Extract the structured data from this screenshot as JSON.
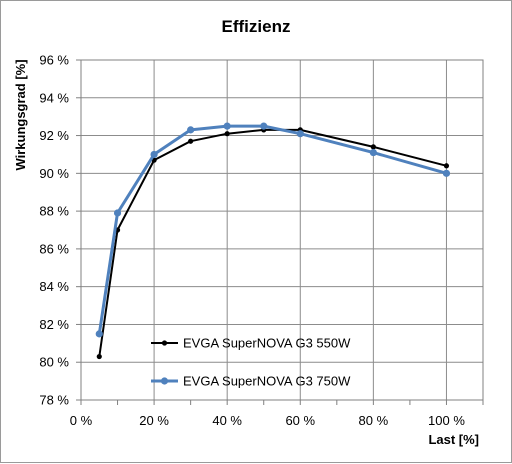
{
  "chart_data": {
    "type": "line",
    "title": "Effizienz",
    "xlabel": "Last [%]",
    "ylabel": "Wirkungsgrad [%]",
    "xlim": [
      0,
      110
    ],
    "ylim": [
      78,
      96
    ],
    "x_ticks": [
      "0 %",
      "20 %",
      "40 %",
      "60 %",
      "80 %",
      "100 %"
    ],
    "x_tick_values": [
      0,
      20,
      40,
      60,
      80,
      100
    ],
    "y_ticks": [
      "78 %",
      "80 %",
      "82 %",
      "84 %",
      "86 %",
      "88 %",
      "90 %",
      "92 %",
      "94 %",
      "96 %"
    ],
    "y_tick_values": [
      78,
      80,
      82,
      84,
      86,
      88,
      90,
      92,
      94,
      96
    ],
    "grid": true,
    "legend_position": "bottom-left",
    "series": [
      {
        "name": "EVGA SuperNOVA G3 550W",
        "color": "#000000",
        "points": [
          [
            5,
            80.3
          ],
          [
            10,
            87.0
          ],
          [
            20,
            90.7
          ],
          [
            30,
            91.7
          ],
          [
            40,
            92.1
          ],
          [
            50,
            92.3
          ],
          [
            60,
            92.3
          ],
          [
            80,
            91.4
          ],
          [
            100,
            90.4
          ]
        ]
      },
      {
        "name": "EVGA SuperNOVA G3 750W",
        "color": "#4f81bd",
        "points": [
          [
            5,
            81.5
          ],
          [
            10,
            87.9
          ],
          [
            20,
            91.0
          ],
          [
            30,
            92.3
          ],
          [
            40,
            92.5
          ],
          [
            50,
            92.5
          ],
          [
            60,
            92.1
          ],
          [
            80,
            91.1
          ],
          [
            100,
            90.0
          ]
        ]
      }
    ]
  }
}
